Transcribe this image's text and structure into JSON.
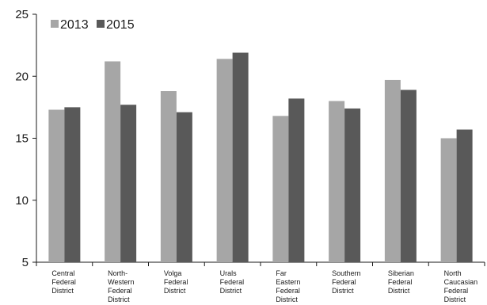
{
  "chart_data": {
    "type": "bar",
    "title": "",
    "xlabel": "",
    "ylabel": "",
    "ylim": [
      5,
      25
    ],
    "yticks": [
      "5",
      "10",
      "15",
      "20",
      "25"
    ],
    "grid": false,
    "legend_position": "top-left",
    "categories": [
      "Central Federal District",
      "North-Western Federal District",
      "Volga Federal District",
      "Urals Federal District",
      "Far Eastern Federal District",
      "Southern Federal District",
      "Siberian Federal District",
      "North Caucasian Federal District"
    ],
    "category_lines": [
      [
        "Central",
        "Federal",
        "District"
      ],
      [
        "North-",
        "Western",
        "Federal",
        "District"
      ],
      [
        "Volga",
        "Federal",
        "District"
      ],
      [
        "Urals",
        "Federal",
        "District"
      ],
      [
        "Far",
        "Eastern",
        "Federal",
        "District"
      ],
      [
        "Southern",
        "Federal",
        "District"
      ],
      [
        "Siberian",
        "Federal",
        "District"
      ],
      [
        "North",
        "Caucasian",
        "Federal",
        "District"
      ]
    ],
    "series": [
      {
        "name": "2013",
        "color": "#a6a6a6",
        "values": [
          17.3,
          21.2,
          18.8,
          21.4,
          16.8,
          18.0,
          19.7,
          15.0
        ]
      },
      {
        "name": "2015",
        "color": "#595959",
        "values": [
          17.5,
          17.7,
          17.1,
          21.9,
          18.2,
          17.4,
          18.9,
          15.7
        ]
      }
    ]
  }
}
